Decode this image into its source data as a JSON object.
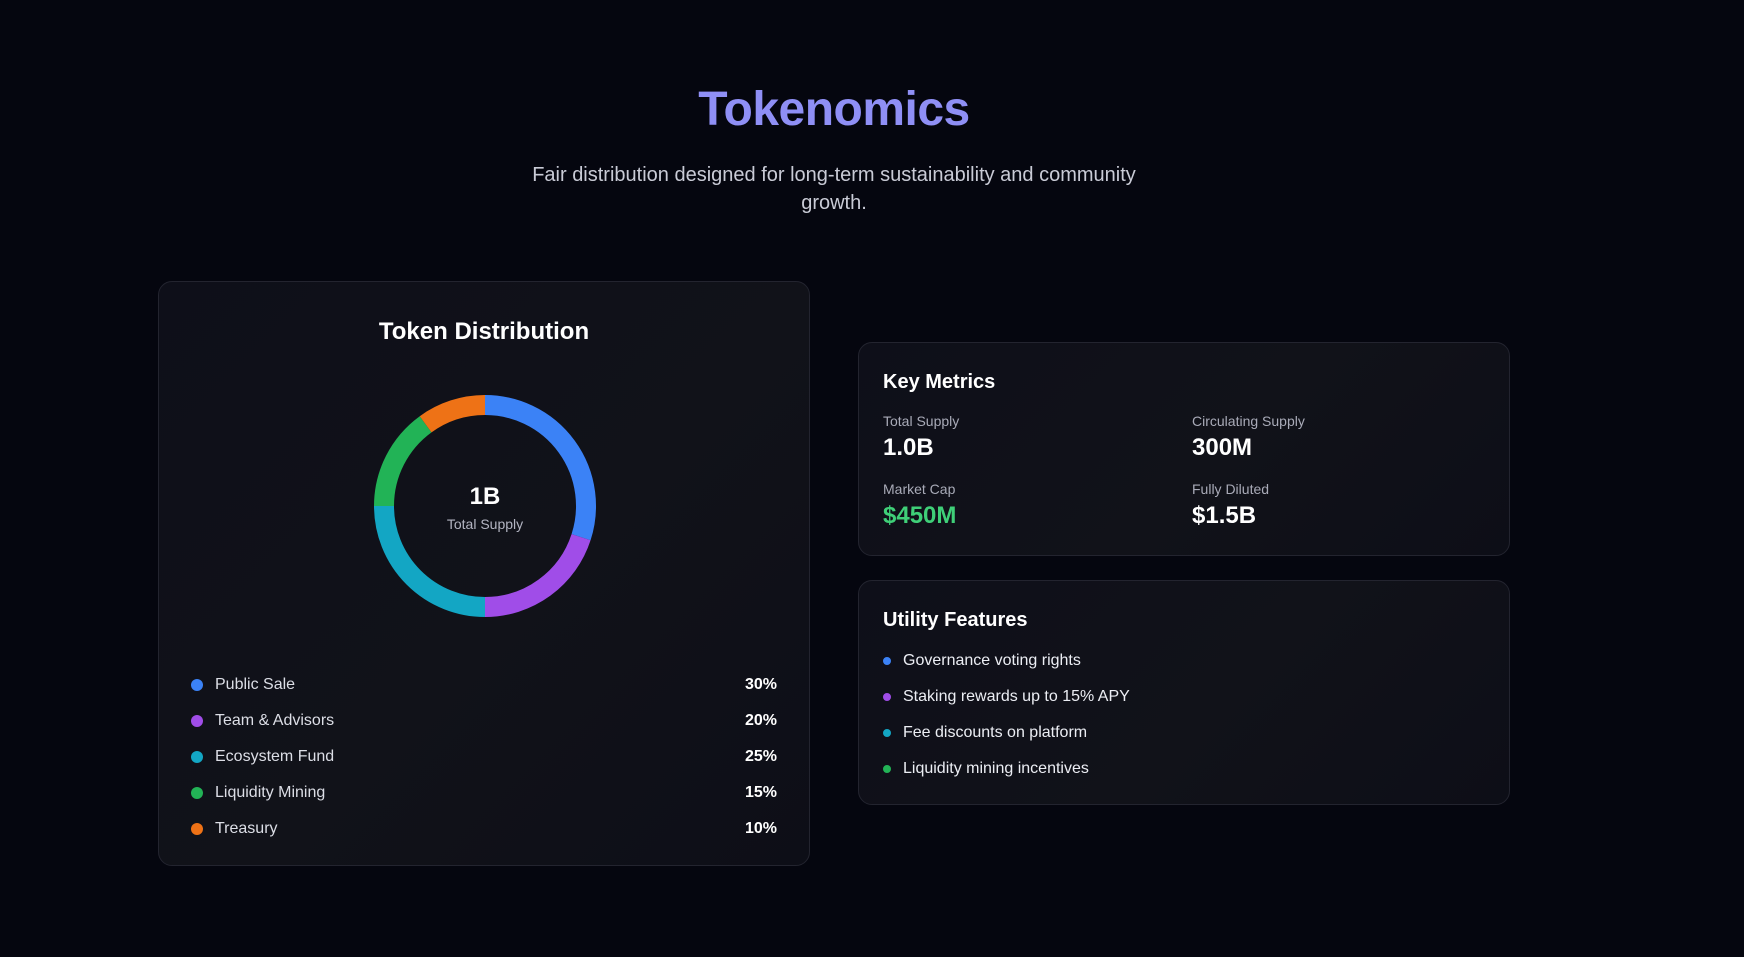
{
  "header": {
    "title": "Tokenomics",
    "subtitle": "Fair distribution designed for long-term sustainability and community growth."
  },
  "distribution": {
    "title": "Token Distribution",
    "center_value": "1B",
    "center_label": "Total Supply",
    "items": [
      {
        "name": "Public Sale",
        "percent_label": "30%",
        "value": 30,
        "color": "#3b82f6"
      },
      {
        "name": "Team & Advisors",
        "percent_label": "20%",
        "value": 20,
        "color": "#a04de8"
      },
      {
        "name": "Ecosystem Fund",
        "percent_label": "25%",
        "value": 25,
        "color": "#13a6c4"
      },
      {
        "name": "Liquidity Mining",
        "percent_label": "15%",
        "value": 15,
        "color": "#22b356"
      },
      {
        "name": "Treasury",
        "percent_label": "10%",
        "value": 10,
        "color": "#ee7216"
      }
    ]
  },
  "chart_data": {
    "type": "pie",
    "categories": [
      "Public Sale",
      "Team & Advisors",
      "Ecosystem Fund",
      "Liquidity Mining",
      "Treasury"
    ],
    "values": [
      30,
      20,
      25,
      15,
      10
    ],
    "title": "Token Distribution"
  },
  "metrics": {
    "title": "Key Metrics",
    "items": [
      {
        "label": "Total Supply",
        "value": "1.0B"
      },
      {
        "label": "Circulating Supply",
        "value": "300M"
      },
      {
        "label": "Market Cap",
        "value": "$450M"
      },
      {
        "label": "Fully Diluted",
        "value": "$1.5B"
      }
    ]
  },
  "features": {
    "title": "Utility Features",
    "items": [
      {
        "text": "Governance voting rights",
        "color": "#3b82f6"
      },
      {
        "text": "Staking rewards up to 15% APY",
        "color": "#a04de8"
      },
      {
        "text": "Fee discounts on platform",
        "color": "#13a6c4"
      },
      {
        "text": "Liquidity mining incentives",
        "color": "#22b356"
      }
    ]
  },
  "colors": {
    "background": "#05060f",
    "accent_title": "#8f8ff5",
    "positive": "#3fcf78"
  }
}
